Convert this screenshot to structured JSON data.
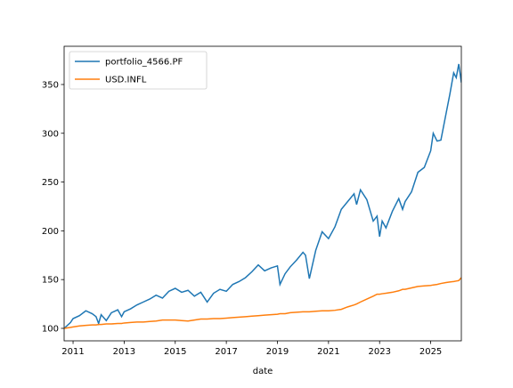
{
  "chart_data": {
    "type": "line",
    "xlabel": "date",
    "x": [
      2010.65,
      2010.9,
      2011.0,
      2011.25,
      2011.5,
      2011.75,
      2011.9,
      2012.0,
      2012.1,
      2012.3,
      2012.5,
      2012.75,
      2012.9,
      2013.0,
      2013.25,
      2013.5,
      2013.75,
      2014.0,
      2014.25,
      2014.5,
      2014.75,
      2015.0,
      2015.25,
      2015.5,
      2015.75,
      2016.0,
      2016.25,
      2016.5,
      2016.75,
      2017.0,
      2017.25,
      2017.5,
      2017.75,
      2018.0,
      2018.25,
      2018.5,
      2018.75,
      2019.0,
      2019.1,
      2019.3,
      2019.5,
      2019.75,
      2020.0,
      2020.1,
      2020.25,
      2020.5,
      2020.75,
      2021.0,
      2021.25,
      2021.5,
      2021.75,
      2022.0,
      2022.1,
      2022.25,
      2022.5,
      2022.75,
      2022.9,
      2023.0,
      2023.1,
      2023.25,
      2023.5,
      2023.75,
      2023.9,
      2024.0,
      2024.25,
      2024.5,
      2024.75,
      2025.0,
      2025.1,
      2025.25,
      2025.4,
      2025.6,
      2025.75,
      2025.9,
      2026.0,
      2026.1,
      2026.2
    ],
    "series": [
      {
        "name": "portfolio_4566.PF",
        "color": "#1f77b4",
        "values": [
          100,
          106,
          110,
          113,
          118,
          115,
          112,
          105,
          114,
          108,
          116,
          119,
          112,
          117,
          120,
          124,
          127,
          130,
          134,
          131,
          138,
          141,
          137,
          139,
          133,
          137,
          127,
          136,
          140,
          138,
          145,
          148,
          152,
          158,
          165,
          159,
          162,
          164,
          145,
          156,
          163,
          170,
          178,
          175,
          151,
          180,
          199,
          192,
          204,
          222,
          230,
          238,
          227,
          242,
          232,
          210,
          215,
          194,
          210,
          203,
          220,
          233,
          222,
          230,
          240,
          260,
          265,
          282,
          300,
          292,
          293,
          320,
          340,
          362,
          357,
          371,
          352
        ]
      },
      {
        "name": "USD.INFL",
        "color": "#ff7f0e",
        "values": [
          100,
          101,
          101.5,
          102.5,
          103,
          103.5,
          103.5,
          104,
          104,
          104.5,
          104.5,
          105,
          105,
          105.5,
          106,
          106.5,
          106.5,
          107,
          107.5,
          108.5,
          108.5,
          108.5,
          108,
          107.5,
          108.5,
          109.5,
          109.5,
          110,
          110,
          110.5,
          111,
          111.5,
          112,
          112.5,
          113,
          113.5,
          114,
          114.5,
          115,
          115,
          116,
          116.5,
          117,
          117,
          117,
          117.5,
          118,
          118,
          118.5,
          119.5,
          122,
          124,
          125,
          127,
          130,
          133,
          135,
          135,
          135.5,
          136,
          137,
          138.5,
          140,
          140,
          141.5,
          143,
          143.5,
          144,
          144.5,
          145,
          146,
          147,
          147.5,
          148,
          148.5,
          149,
          152
        ]
      }
    ],
    "xlim": [
      2010.65,
      2026.2
    ],
    "xticks": [
      2011,
      2013,
      2015,
      2017,
      2019,
      2021,
      2023,
      2025
    ],
    "ylim": [
      87.2,
      389.2
    ],
    "yticks": [
      100,
      150,
      200,
      250,
      300,
      350
    ],
    "legend": "upper left"
  }
}
